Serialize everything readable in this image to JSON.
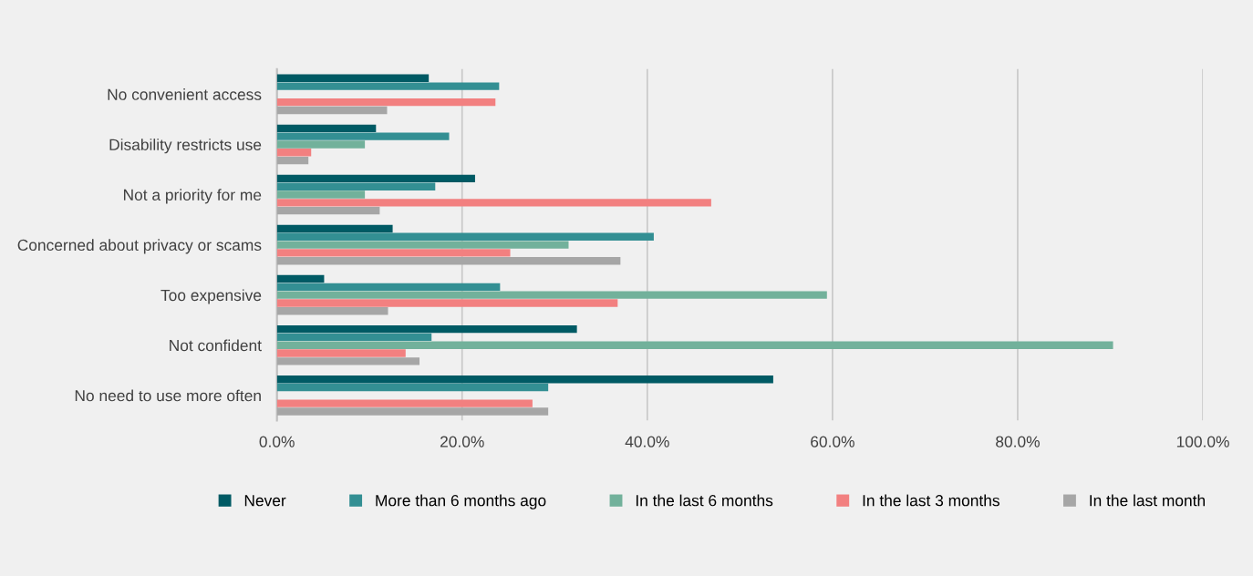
{
  "chart_data": {
    "type": "bar",
    "orientation": "horizontal",
    "categories": [
      "No convenient access",
      "Disability restricts use",
      "Not a priority for me",
      "Concerned about privacy or scams",
      "Too expensive",
      "Not confident",
      "No need to use more often"
    ],
    "series": [
      {
        "name": "Never",
        "color": "#005a64",
        "values": [
          16.4,
          10.7,
          21.4,
          12.5,
          5.1,
          32.4,
          53.6
        ]
      },
      {
        "name": "More than 6 months ago",
        "color": "#338f93",
        "values": [
          24.0,
          18.6,
          17.1,
          40.7,
          24.1,
          16.7,
          29.3
        ]
      },
      {
        "name": "In the last 6 months",
        "color": "#72b19b",
        "values": [
          null,
          9.5,
          9.5,
          31.5,
          59.4,
          90.3,
          null
        ]
      },
      {
        "name": "In the last 3 months",
        "color": "#f28080",
        "values": [
          23.6,
          3.7,
          46.9,
          25.2,
          36.8,
          13.9,
          27.6
        ]
      },
      {
        "name": "In the last month",
        "color": "#a6a6a6",
        "values": [
          11.9,
          3.4,
          11.1,
          37.1,
          12.0,
          15.4,
          29.3
        ]
      }
    ],
    "xlim": [
      0,
      100
    ],
    "xticks": [
      {
        "value": 0,
        "label": "0.0%"
      },
      {
        "value": 20,
        "label": "20.0%"
      },
      {
        "value": 40,
        "label": "40.0%"
      },
      {
        "value": 60,
        "label": "60.0%"
      },
      {
        "value": 80,
        "label": "80.0%"
      },
      {
        "value": 100,
        "label": "100.0%"
      }
    ],
    "grid": "x",
    "legend": "bottom"
  }
}
